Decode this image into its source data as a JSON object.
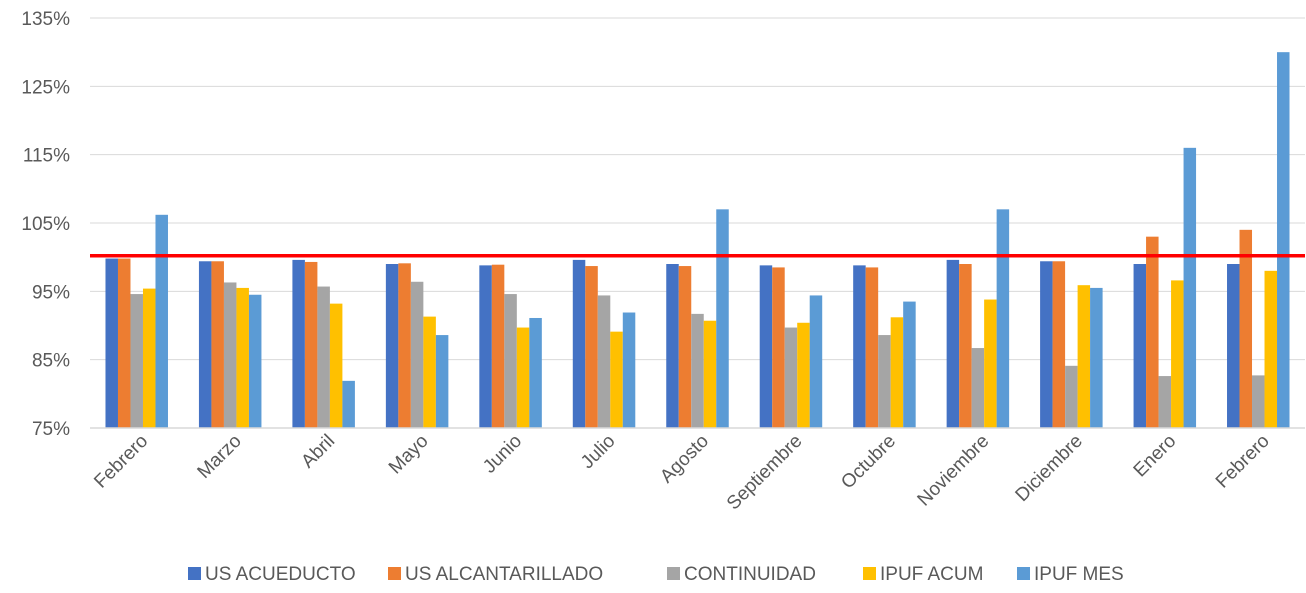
{
  "chart_data": {
    "type": "bar",
    "title": "",
    "xlabel": "",
    "ylabel": "",
    "ylim": [
      75,
      135
    ],
    "yticks": [
      75,
      85,
      95,
      105,
      115,
      125,
      135
    ],
    "ytick_labels": [
      "75%",
      "85%",
      "95%",
      "105%",
      "115%",
      "125%",
      "135%"
    ],
    "grid": true,
    "legend_position": "bottom",
    "categories": [
      "Febrero",
      "Marzo",
      "Abril",
      "Mayo",
      "Junio",
      "Julio",
      "Agosto",
      "Septiembre",
      "Octubre",
      "Noviembre",
      "Diciembre",
      "Enero",
      "Febrero"
    ],
    "reference_line": {
      "value": 100.2,
      "color": "#FF0000"
    },
    "series": [
      {
        "name": "US ACUEDUCTO",
        "color": "#4472C4",
        "values": [
          99.8,
          99.4,
          99.6,
          99.0,
          98.8,
          99.6,
          99.0,
          98.8,
          98.8,
          99.6,
          99.4,
          99.0,
          99.0
        ]
      },
      {
        "name": "US ALCANTARILLADO",
        "color": "#ED7D31",
        "values": [
          99.8,
          99.4,
          99.3,
          99.1,
          98.9,
          98.7,
          98.7,
          98.5,
          98.5,
          99.0,
          99.4,
          103.0,
          104.0
        ]
      },
      {
        "name": "CONTINUIDAD",
        "color": "#A5A5A5",
        "values": [
          94.6,
          96.3,
          95.7,
          96.4,
          94.6,
          94.4,
          91.7,
          89.7,
          88.6,
          86.7,
          84.1,
          82.6,
          82.7
        ]
      },
      {
        "name": "IPUF ACUM",
        "color": "#FFC000",
        "values": [
          95.4,
          95.5,
          93.2,
          91.3,
          89.7,
          89.1,
          90.7,
          90.4,
          91.2,
          93.8,
          95.9,
          96.6,
          98.0
        ]
      },
      {
        "name": "IPUF MES",
        "color": "#5B9BD5",
        "values": [
          106.2,
          94.5,
          81.9,
          88.6,
          91.1,
          91.9,
          107.0,
          94.4,
          93.5,
          107.0,
          95.5,
          116.0,
          130.0
        ]
      }
    ]
  }
}
